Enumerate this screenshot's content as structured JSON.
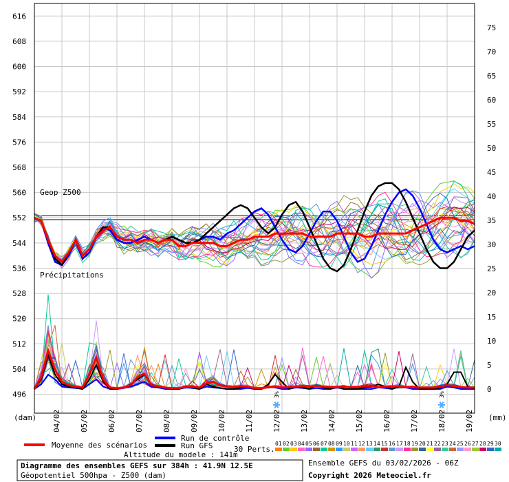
{
  "chart_data": {
    "type": "line",
    "title": "Diagramme des ensembles GEFS sur 384h : 41.9N 12.5E",
    "subtitle": "Géopotentiel 500hpa - Z500 (dam)",
    "panel_labels": {
      "geop": "Geop Z500",
      "precip": "Précipitations"
    },
    "left_axis": {
      "unit_label": "(dam)",
      "range": [
        490,
        620
      ],
      "ticks": [
        616,
        608,
        600,
        592,
        584,
        576,
        568,
        560,
        552,
        544,
        536,
        528,
        520,
        512,
        504,
        496
      ]
    },
    "right_axis": {
      "unit_label": "(mm)",
      "range": [
        -5,
        80
      ],
      "ticks": [
        75,
        70,
        65,
        60,
        55,
        50,
        45,
        40,
        35,
        30,
        25,
        20,
        15,
        10,
        5,
        0
      ]
    },
    "x_labels": [
      "04/02",
      "05/02",
      "06/02",
      "07/02",
      "08/02",
      "09/02",
      "10/02",
      "11/02",
      "12/02",
      "13/02",
      "14/02",
      "15/02",
      "16/02",
      "17/02",
      "18/02",
      "19/02"
    ],
    "hours": [
      0,
      6,
      12,
      18,
      24,
      30,
      36,
      42,
      48,
      54,
      60,
      66,
      72,
      78,
      84,
      90,
      96,
      102,
      108,
      114,
      120,
      126,
      132,
      138,
      144,
      150,
      156,
      162,
      168,
      174,
      180,
      186,
      192,
      198,
      204,
      210,
      216,
      222,
      228,
      234,
      240,
      246,
      252,
      258,
      264,
      270,
      276,
      282,
      288,
      294,
      300,
      306,
      312,
      318,
      324,
      330,
      336,
      342,
      348,
      354,
      360,
      366,
      372,
      378,
      384
    ],
    "series": [
      {
        "name": "Moyenne des scénarios",
        "color": "#ff0000",
        "z500": [
          552,
          551,
          545,
          540,
          538,
          541,
          545,
          540,
          542,
          546,
          548,
          549,
          546,
          545,
          545,
          544,
          545,
          545,
          544,
          545,
          545,
          543,
          543,
          544,
          544,
          544,
          544,
          543,
          543,
          544,
          545,
          545,
          546,
          546,
          546,
          547,
          547,
          547,
          547,
          547,
          546,
          546,
          546,
          546,
          547,
          547,
          547,
          547,
          546,
          546,
          547,
          547,
          547,
          547,
          547,
          548,
          549,
          550,
          551,
          552,
          552,
          552,
          551,
          551,
          550
        ],
        "precip": [
          0,
          2.5,
          8,
          4,
          1.5,
          0.8,
          0.5,
          0.3,
          3,
          6.5,
          2,
          0.3,
          0.2,
          0.3,
          0.8,
          2.5,
          3.2,
          0.8,
          0.6,
          0.3,
          0.2,
          0.2,
          0.5,
          0.5,
          0.3,
          1.2,
          1.5,
          0.8,
          0.5,
          0.4,
          0.6,
          0.5,
          0.2,
          0.2,
          0.4,
          0.5,
          0.3,
          0.4,
          0.5,
          0.6,
          0.5,
          0.7,
          0.5,
          0.4,
          0.4,
          0.5,
          0.4,
          0.4,
          0.6,
          0.7,
          0.4,
          0.5,
          0.5,
          0.6,
          0.4,
          0.4,
          0.3,
          0.3,
          0.3,
          0.5,
          0.8,
          0.6,
          0.4,
          0.3,
          0.3
        ]
      },
      {
        "name": "Run de contrôle",
        "color": "#0000ff",
        "z500": [
          552,
          551,
          544,
          538,
          537,
          540,
          545,
          539,
          541,
          546,
          549,
          548,
          545,
          544,
          544,
          545,
          546,
          545,
          544,
          545,
          546,
          545,
          544,
          544,
          545,
          546,
          546,
          545,
          547,
          548,
          550,
          552,
          554,
          555,
          553,
          549,
          545,
          542,
          541,
          543,
          547,
          551,
          554,
          554,
          551,
          546,
          541,
          538,
          539,
          543,
          548,
          553,
          557,
          560,
          561,
          559,
          555,
          550,
          545,
          542,
          541,
          542,
          543,
          542,
          543
        ],
        "precip": [
          0,
          1,
          3,
          2,
          0.5,
          0.3,
          0.2,
          0,
          1,
          2,
          0.5,
          0,
          0,
          0.2,
          0.5,
          1,
          1.5,
          0.5,
          0.3,
          0,
          0,
          0,
          0.3,
          0.2,
          0,
          0.5,
          0.3,
          0.2,
          0,
          0,
          0,
          0.2,
          0,
          0,
          0.5,
          0.3,
          0,
          0,
          0.3,
          0.2,
          0,
          0.2,
          0,
          0,
          0.3,
          0,
          0,
          0,
          0,
          0,
          0.3,
          0.2,
          0,
          0.5,
          0.3,
          0,
          0,
          0,
          0,
          0,
          0.5,
          0.3,
          0,
          0,
          0
        ]
      },
      {
        "name": "Run GFS",
        "color": "#000000",
        "z500": [
          552,
          551,
          545,
          539,
          537,
          541,
          545,
          540,
          542,
          546,
          549,
          549,
          546,
          545,
          545,
          544,
          545,
          545,
          544,
          545,
          546,
          545,
          544,
          544,
          545,
          547,
          549,
          551,
          553,
          555,
          556,
          555,
          552,
          549,
          547,
          549,
          553,
          556,
          557,
          554,
          549,
          544,
          539,
          536,
          535,
          537,
          542,
          548,
          554,
          559,
          562,
          563,
          563,
          561,
          557,
          552,
          547,
          542,
          538,
          536,
          536,
          538,
          542,
          546,
          548
        ],
        "precip": [
          0,
          2,
          7,
          3,
          1,
          0.5,
          0.3,
          0,
          2,
          5,
          1.5,
          0,
          0,
          0.3,
          1,
          2,
          3,
          1,
          0.5,
          0.3,
          0,
          0,
          0.5,
          0.3,
          0,
          1,
          0.5,
          0.2,
          0,
          0,
          0.3,
          0.5,
          0,
          0,
          1,
          3,
          1.5,
          0,
          0.5,
          0.3,
          0,
          0.8,
          0.3,
          0,
          0.5,
          0,
          0,
          0,
          0.3,
          0.5,
          1,
          0.5,
          0,
          0.5,
          4.5,
          1.5,
          0,
          0,
          0,
          0.3,
          1,
          3.5,
          3.5,
          0.5,
          0
        ]
      }
    ],
    "perturbation_count": 30,
    "perturbation_colors": [
      "#ff8000",
      "#66cc33",
      "#ffcc00",
      "#ff66cc",
      "#9966ff",
      "#996633",
      "#00cc99",
      "#cc9900",
      "#3399ff",
      "#cccc66",
      "#cc66ff",
      "#ff9966",
      "#66ccff",
      "#339966",
      "#cc3333",
      "#6699cc",
      "#cc99ff",
      "#ff3399",
      "#999933",
      "#336699",
      "#ffff33",
      "#996699",
      "#33cc99",
      "#cc6633",
      "#9999ff",
      "#ff99cc",
      "#99cc33",
      "#cc0066",
      "#3366cc",
      "#00aaaa"
    ],
    "snow_markers": [
      {
        "date": "12/02",
        "label": "3%"
      },
      {
        "date": "18/02",
        "label": "3%"
      }
    ],
    "grid": true
  },
  "legend": {
    "mean_label": "Moyenne des scénarios",
    "control_label": "Run de contrôle",
    "gfs_label": "Run GFS",
    "perts_label": "30 Perts.",
    "pert_numbers": [
      "01",
      "02",
      "03",
      "04",
      "05",
      "06",
      "07",
      "08",
      "09",
      "10",
      "11",
      "12",
      "13",
      "14",
      "15",
      "16",
      "17",
      "18",
      "19",
      "20",
      "21",
      "22",
      "23",
      "24",
      "25",
      "26",
      "27",
      "28",
      "29",
      "30"
    ],
    "altitude": "Altitude du modele : 141m"
  },
  "footer": {
    "line1": "Diagramme des ensembles GEFS sur 384h : 41.9N 12.5E",
    "line2": "Géopotentiel 500hpa - Z500 (dam)",
    "ensemble": "Ensemble GEFS du 03/02/2026 - 06Z",
    "copyright": "Copyright 2026 Meteociel.fr"
  }
}
